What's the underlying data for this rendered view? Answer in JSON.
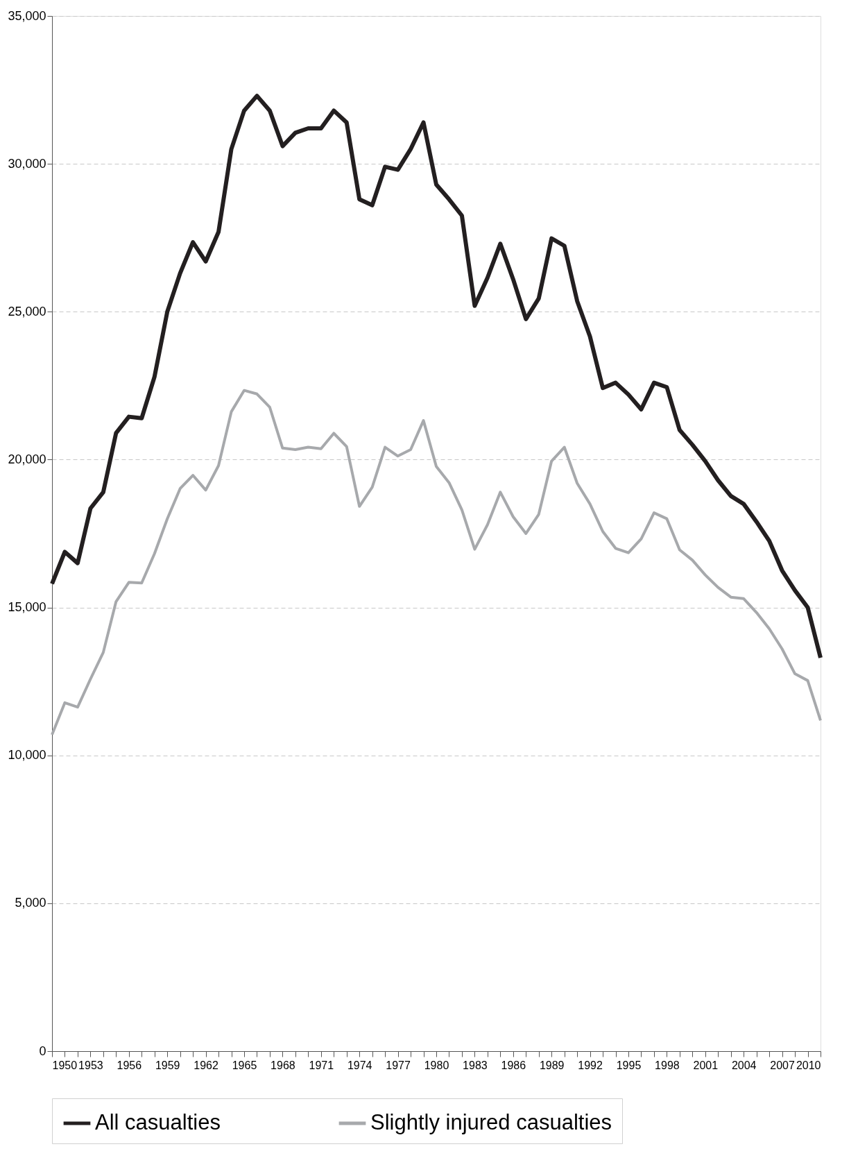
{
  "chart_data": {
    "type": "line",
    "x": [
      1950,
      1951,
      1952,
      1953,
      1954,
      1955,
      1956,
      1957,
      1958,
      1959,
      1960,
      1961,
      1962,
      1963,
      1964,
      1965,
      1966,
      1967,
      1968,
      1969,
      1970,
      1971,
      1972,
      1973,
      1974,
      1975,
      1976,
      1977,
      1978,
      1979,
      1980,
      1981,
      1982,
      1983,
      1984,
      1985,
      1986,
      1987,
      1988,
      1989,
      1990,
      1991,
      1992,
      1993,
      1994,
      1995,
      1996,
      1997,
      1998,
      1999,
      2000,
      2001,
      2002,
      2003,
      2004,
      2005,
      2006,
      2007,
      2008,
      2009,
      2010
    ],
    "series": [
      {
        "name": "All casualties",
        "color": "#231f20",
        "values": [
          15800,
          16880,
          16500,
          18350,
          18900,
          20900,
          21450,
          21400,
          22800,
          25000,
          26300,
          27350,
          26700,
          27700,
          30500,
          31800,
          32300,
          31800,
          30600,
          31050,
          31200,
          31200,
          31800,
          31400,
          28800,
          28600,
          29900,
          29800,
          30500,
          31400,
          29300,
          28800,
          28250,
          25200,
          26150,
          27300,
          26100,
          24750,
          25450,
          27480,
          27230,
          25360,
          24160,
          22420,
          22600,
          22200,
          21700,
          22600,
          22450,
          21000,
          20500,
          19950,
          19300,
          18770,
          18500,
          17900,
          17250,
          16250,
          15580,
          15000,
          13300
        ]
      },
      {
        "name": "Slightly injured casualties",
        "color": "#a7a9ac",
        "values": [
          10700,
          11780,
          11630,
          12580,
          13480,
          15200,
          15850,
          15830,
          16820,
          18000,
          19020,
          19470,
          18970,
          19800,
          21620,
          22340,
          22220,
          21770,
          20390,
          20340,
          20420,
          20370,
          20890,
          20440,
          18420,
          19070,
          20420,
          20120,
          20340,
          21320,
          19770,
          19220,
          18300,
          16970,
          17800,
          18900,
          18070,
          17500,
          18150,
          19950,
          20420,
          19200,
          18500,
          17570,
          17000,
          16850,
          17320,
          18200,
          18000,
          16950,
          16600,
          16100,
          15680,
          15350,
          15300,
          14830,
          14280,
          13600,
          12760,
          12530,
          11180
        ]
      }
    ],
    "xlim": [
      1950,
      2010
    ],
    "xticks": [
      1950,
      {
        "value": 1951,
        "label": null
      },
      {
        "value": 1952,
        "label": null
      },
      1953,
      {
        "value": 1954,
        "label": null
      },
      {
        "value": 1955,
        "label": null
      },
      1956,
      {
        "value": 1957,
        "label": null
      },
      {
        "value": 1958,
        "label": null
      },
      1959,
      {
        "value": 1960,
        "label": null
      },
      {
        "value": 1961,
        "label": null
      },
      1962,
      {
        "value": 1963,
        "label": null
      },
      {
        "value": 1964,
        "label": null
      },
      1965,
      {
        "value": 1966,
        "label": null
      },
      {
        "value": 1967,
        "label": null
      },
      1968,
      {
        "value": 1969,
        "label": null
      },
      {
        "value": 1970,
        "label": null
      },
      1971,
      {
        "value": 1972,
        "label": null
      },
      {
        "value": 1973,
        "label": null
      },
      1974,
      {
        "value": 1975,
        "label": null
      },
      {
        "value": 1976,
        "label": null
      },
      1977,
      {
        "value": 1978,
        "label": null
      },
      {
        "value": 1979,
        "label": null
      },
      1980,
      {
        "value": 1981,
        "label": null
      },
      {
        "value": 1982,
        "label": null
      },
      1983,
      {
        "value": 1984,
        "label": null
      },
      {
        "value": 1985,
        "label": null
      },
      1986,
      {
        "value": 1987,
        "label": null
      },
      {
        "value": 1988,
        "label": null
      },
      1989,
      {
        "value": 1990,
        "label": null
      },
      {
        "value": 1991,
        "label": null
      },
      1992,
      {
        "value": 1993,
        "label": null
      },
      {
        "value": 1994,
        "label": null
      },
      1995,
      {
        "value": 1996,
        "label": null
      },
      {
        "value": 1997,
        "label": null
      },
      1998,
      {
        "value": 1999,
        "label": null
      },
      {
        "value": 2000,
        "label": null
      },
      2001,
      {
        "value": 2002,
        "label": null
      },
      {
        "value": 2003,
        "label": null
      },
      2004,
      {
        "value": 2005,
        "label": null
      },
      {
        "value": 2006,
        "label": null
      },
      2007,
      {
        "value": 2008,
        "label": null
      },
      {
        "value": 2009,
        "label": null
      },
      2010
    ],
    "ylim": [
      0,
      35000
    ],
    "yticks": [
      {
        "value": 0,
        "label": "0"
      },
      {
        "value": 5000,
        "label": "5,000"
      },
      {
        "value": 10000,
        "label": "10,000"
      },
      {
        "value": 15000,
        "label": "15,000"
      },
      {
        "value": 20000,
        "label": "20,000"
      },
      {
        "value": 25000,
        "label": "25,000"
      },
      {
        "value": 30000,
        "label": "30,000"
      },
      {
        "value": 35000,
        "label": "35,000"
      }
    ],
    "grid": "y",
    "legend": "bottom",
    "line_style": "solid",
    "marker": "none"
  }
}
